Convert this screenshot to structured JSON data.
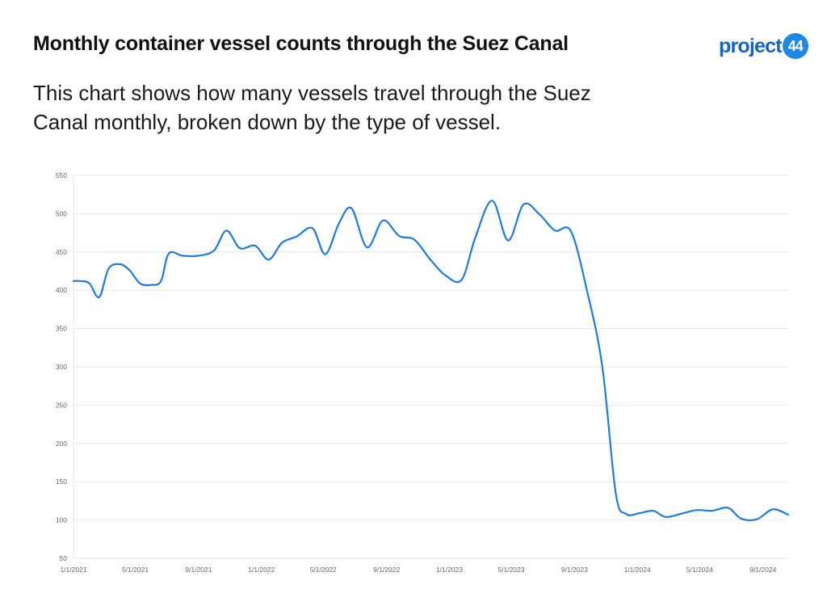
{
  "header": {
    "title": "Monthly container vessel counts through the Suez Canal",
    "subtitle": "This chart shows how many vessels travel through the Suez Canal monthly, broken down by the type of vessel."
  },
  "logo": {
    "word": "project",
    "badge": "44"
  },
  "colors": {
    "line": "#1e7be0",
    "grid": "#e6e6e6",
    "text": "#666666"
  },
  "chart_data": {
    "type": "line",
    "title": "",
    "xlabel": "",
    "ylabel": "",
    "ylim": [
      50,
      550
    ],
    "y_ticks": [
      50,
      100,
      150,
      200,
      250,
      300,
      350,
      400,
      450,
      500,
      550
    ],
    "x_tick_labels": [
      "1/1/2021",
      "5/1/2021",
      "9/1/2021",
      "1/1/2022",
      "5/1/2022",
      "9/1/2022",
      "1/1/2023",
      "5/1/2023",
      "9/1/2023",
      "1/1/2024",
      "5/1/2024",
      "9/1/2024"
    ],
    "grid": true,
    "legend": "none",
    "series": [
      {
        "points": [
          [
            "2021-01-01",
            412
          ],
          [
            "2021-01-15",
            412
          ],
          [
            "2021-02-01",
            409
          ],
          [
            "2021-02-20",
            391
          ],
          [
            "2021-03-10",
            428
          ],
          [
            "2021-04-01",
            434
          ],
          [
            "2021-04-20",
            426
          ],
          [
            "2021-05-10",
            409
          ],
          [
            "2021-06-01",
            407
          ],
          [
            "2021-06-20",
            412
          ],
          [
            "2021-07-05",
            448
          ],
          [
            "2021-08-01",
            445
          ],
          [
            "2021-09-01",
            445
          ],
          [
            "2021-10-01",
            452
          ],
          [
            "2021-10-25",
            478
          ],
          [
            "2021-11-20",
            455
          ],
          [
            "2021-12-20",
            458
          ],
          [
            "2022-01-15",
            440
          ],
          [
            "2022-02-10",
            462
          ],
          [
            "2022-03-10",
            470
          ],
          [
            "2022-04-10",
            481
          ],
          [
            "2022-05-05",
            447
          ],
          [
            "2022-06-01",
            488
          ],
          [
            "2022-06-25",
            507
          ],
          [
            "2022-07-25",
            456
          ],
          [
            "2022-08-25",
            491
          ],
          [
            "2022-09-25",
            471
          ],
          [
            "2022-10-25",
            466
          ],
          [
            "2022-11-25",
            440
          ],
          [
            "2022-12-25",
            419
          ],
          [
            "2023-01-25",
            414
          ],
          [
            "2023-02-20",
            468
          ],
          [
            "2023-03-25",
            517
          ],
          [
            "2023-04-25",
            465
          ],
          [
            "2023-05-25",
            512
          ],
          [
            "2023-06-25",
            499
          ],
          [
            "2023-07-25",
            478
          ],
          [
            "2023-08-25",
            477
          ],
          [
            "2023-09-25",
            400
          ],
          [
            "2023-10-25",
            300
          ],
          [
            "2023-11-20",
            135
          ],
          [
            "2023-12-10",
            108
          ],
          [
            "2024-01-05",
            109
          ],
          [
            "2024-02-01",
            112
          ],
          [
            "2024-02-25",
            104
          ],
          [
            "2024-03-25",
            108
          ],
          [
            "2024-04-25",
            113
          ],
          [
            "2024-05-25",
            112
          ],
          [
            "2024-06-25",
            116
          ],
          [
            "2024-07-20",
            102
          ],
          [
            "2024-08-20",
            101
          ],
          [
            "2024-09-20",
            114
          ],
          [
            "2024-10-20",
            107
          ]
        ]
      }
    ]
  }
}
